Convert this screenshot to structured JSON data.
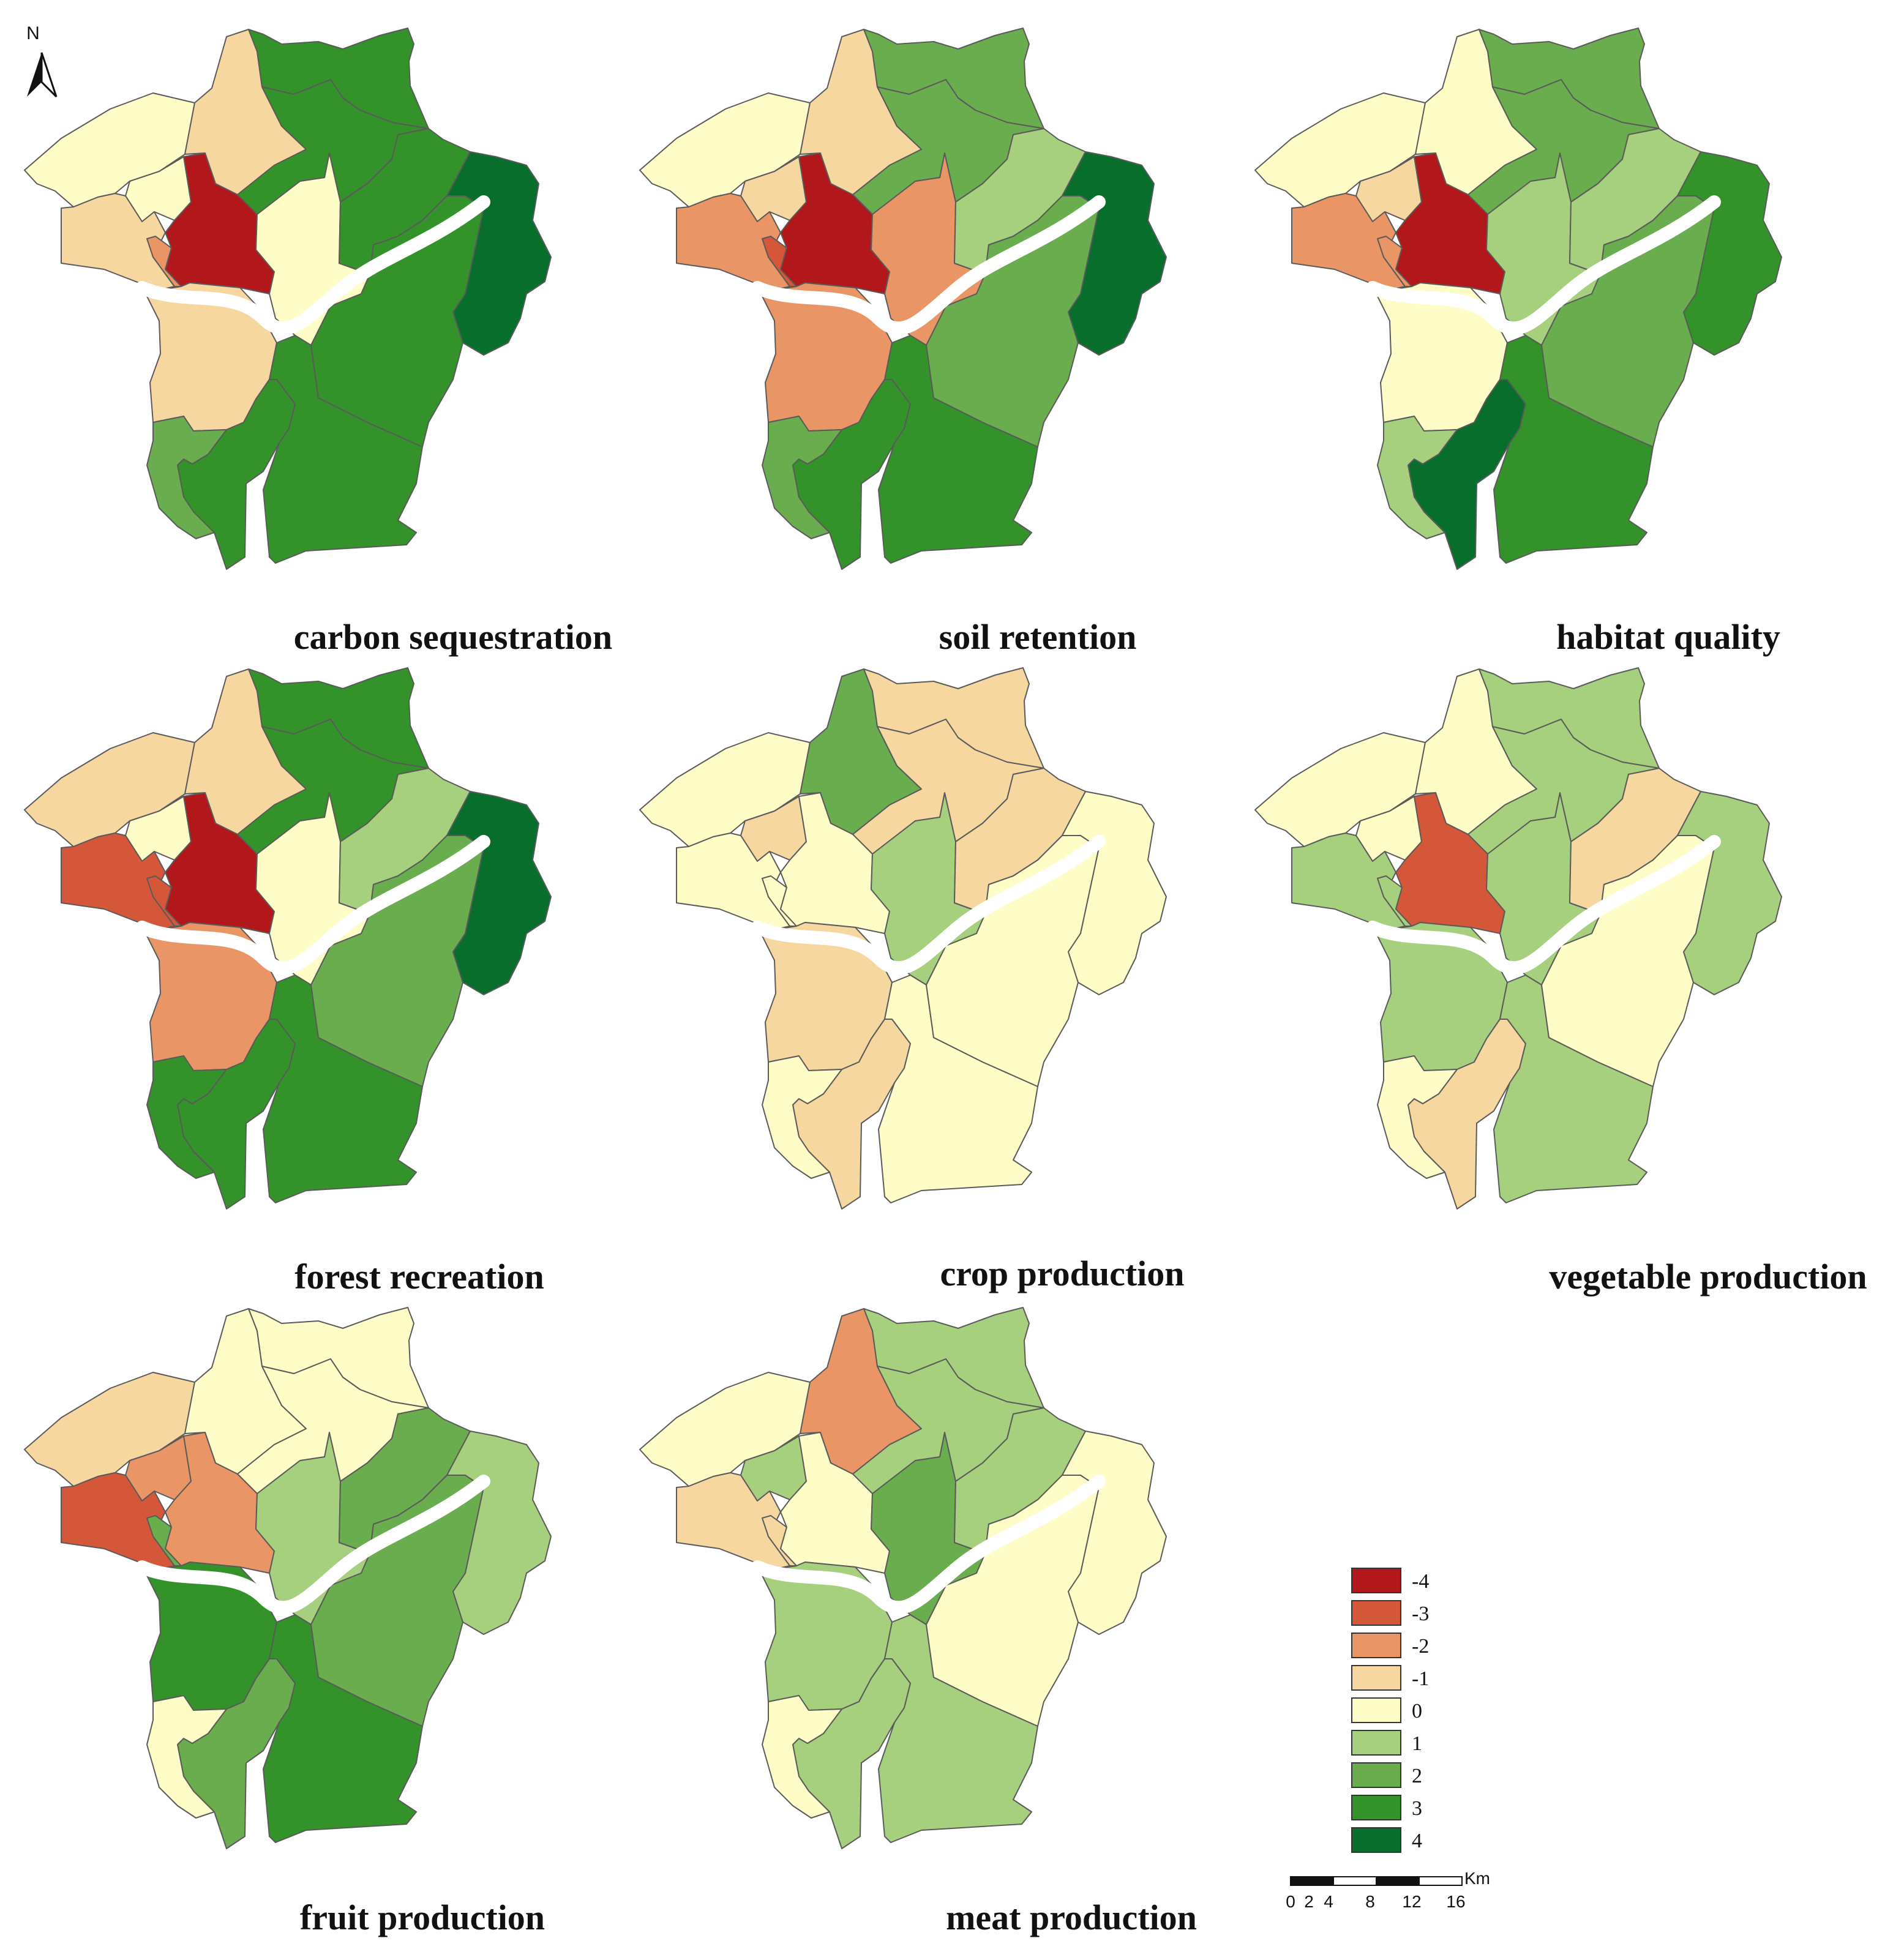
{
  "north_arrow": {
    "label": "N"
  },
  "panels": [
    {
      "title": "carbon sequestration",
      "values": [
        0,
        0,
        -1,
        -2,
        -4,
        0,
        -1,
        3,
        4,
        3,
        3,
        -1,
        3,
        3,
        3,
        4,
        2
      ]
    },
    {
      "title": "soil retention",
      "values": [
        0,
        -1,
        -2,
        -3,
        -4,
        -2,
        -1,
        2,
        3,
        2,
        1,
        -2,
        3,
        3,
        2,
        4,
        2
      ]
    },
    {
      "title": "habitat quality",
      "values": [
        0,
        -1,
        -2,
        -2,
        -4,
        1,
        0,
        2,
        4,
        2,
        1,
        0,
        4,
        3,
        2,
        3,
        1
      ]
    },
    {
      "title": "forest recreation",
      "values": [
        -1,
        0,
        -3,
        -3,
        -4,
        0,
        -1,
        3,
        4,
        3,
        1,
        -2,
        3,
        3,
        2,
        4,
        3
      ]
    },
    {
      "title": "crop production",
      "values": [
        0,
        -1,
        0,
        0,
        0,
        1,
        2,
        -1,
        1,
        -1,
        -1,
        -1,
        -1,
        0,
        0,
        0,
        0
      ]
    },
    {
      "title": "vegetable production",
      "values": [
        0,
        0,
        1,
        1,
        -3,
        1,
        0,
        1,
        2,
        1,
        -1,
        1,
        -1,
        1,
        0,
        1,
        0
      ]
    },
    {
      "title": "fruit production",
      "values": [
        -1,
        -2,
        -3,
        2,
        -2,
        1,
        0,
        0,
        0,
        0,
        2,
        3,
        2,
        3,
        2,
        1,
        0
      ]
    },
    {
      "title": "meat production",
      "values": [
        0,
        1,
        -1,
        -1,
        0,
        2,
        -2,
        1,
        0,
        1,
        1,
        1,
        1,
        1,
        0,
        0,
        0
      ]
    }
  ],
  "legend": {
    "classes": [
      {
        "label": "-4",
        "color": "#b2171b"
      },
      {
        "label": "-3",
        "color": "#d5573a"
      },
      {
        "label": "-2",
        "color": "#e99565"
      },
      {
        "label": "-1",
        "color": "#f7d7a0"
      },
      {
        "label": "0",
        "color": "#fefdc8"
      },
      {
        "label": "1",
        "color": "#a6d07d"
      },
      {
        "label": "2",
        "color": "#6aad4e"
      },
      {
        "label": "3",
        "color": "#33922a"
      },
      {
        "label": "4",
        "color": "#076e2c"
      }
    ]
  },
  "scale_bar": {
    "unit": "Km",
    "ticks": [
      "0",
      "2",
      "4",
      "8",
      "12",
      "16"
    ]
  }
}
